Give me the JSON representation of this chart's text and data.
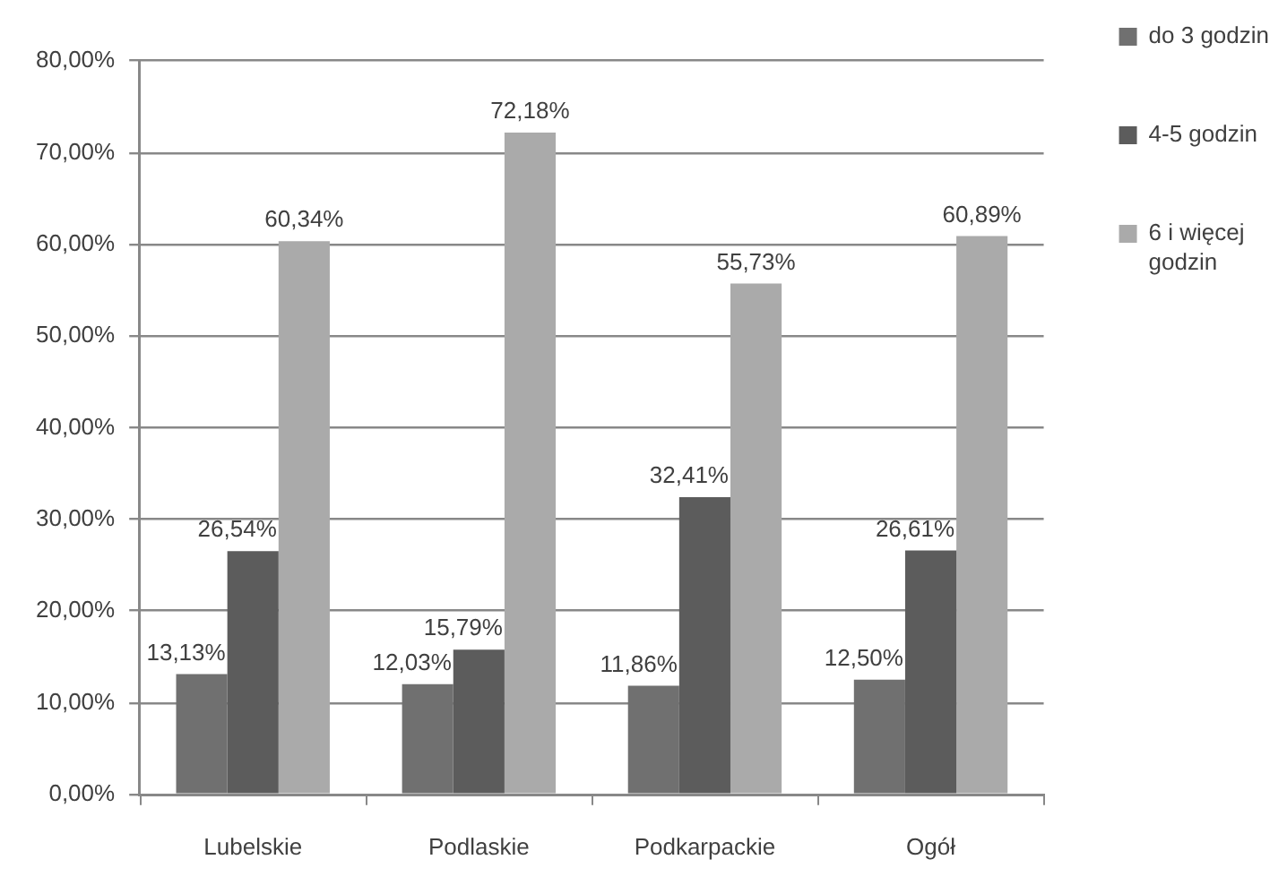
{
  "chart_data": {
    "type": "bar",
    "categories": [
      "Lubelskie",
      "Podlaskie",
      "Podkarpackie",
      "Ogół"
    ],
    "series": [
      {
        "name": "do 3 godzin",
        "color": "#707070",
        "values": [
          13.13,
          12.03,
          11.86,
          12.5
        ],
        "value_labels": [
          "13,13%",
          "12,03%",
          "11,86%",
          "12,50%"
        ]
      },
      {
        "name": "4-5 godzin",
        "color": "#5c5c5c",
        "values": [
          26.54,
          15.79,
          32.41,
          26.61
        ],
        "value_labels": [
          "26,54%",
          "15,79%",
          "32,41%",
          "26,61%"
        ]
      },
      {
        "name": "6 i więcej godzin",
        "color": "#aaaaaa",
        "values": [
          60.34,
          72.18,
          55.73,
          60.89
        ],
        "value_labels": [
          "60,34%",
          "72,18%",
          "55,73%",
          "60,89%"
        ]
      }
    ],
    "ylim": [
      0,
      80
    ],
    "yticks": [
      {
        "value": 0,
        "label": "0,00%"
      },
      {
        "value": 10,
        "label": "10,00%"
      },
      {
        "value": 20,
        "label": "20,00%"
      },
      {
        "value": 30,
        "label": "30,00%"
      },
      {
        "value": 40,
        "label": "40,00%"
      },
      {
        "value": 50,
        "label": "50,00%"
      },
      {
        "value": 60,
        "label": "60,00%"
      },
      {
        "value": 70,
        "label": "70,00%"
      },
      {
        "value": 80,
        "label": "80,00%"
      }
    ],
    "grid": "y",
    "legend": "top right"
  }
}
